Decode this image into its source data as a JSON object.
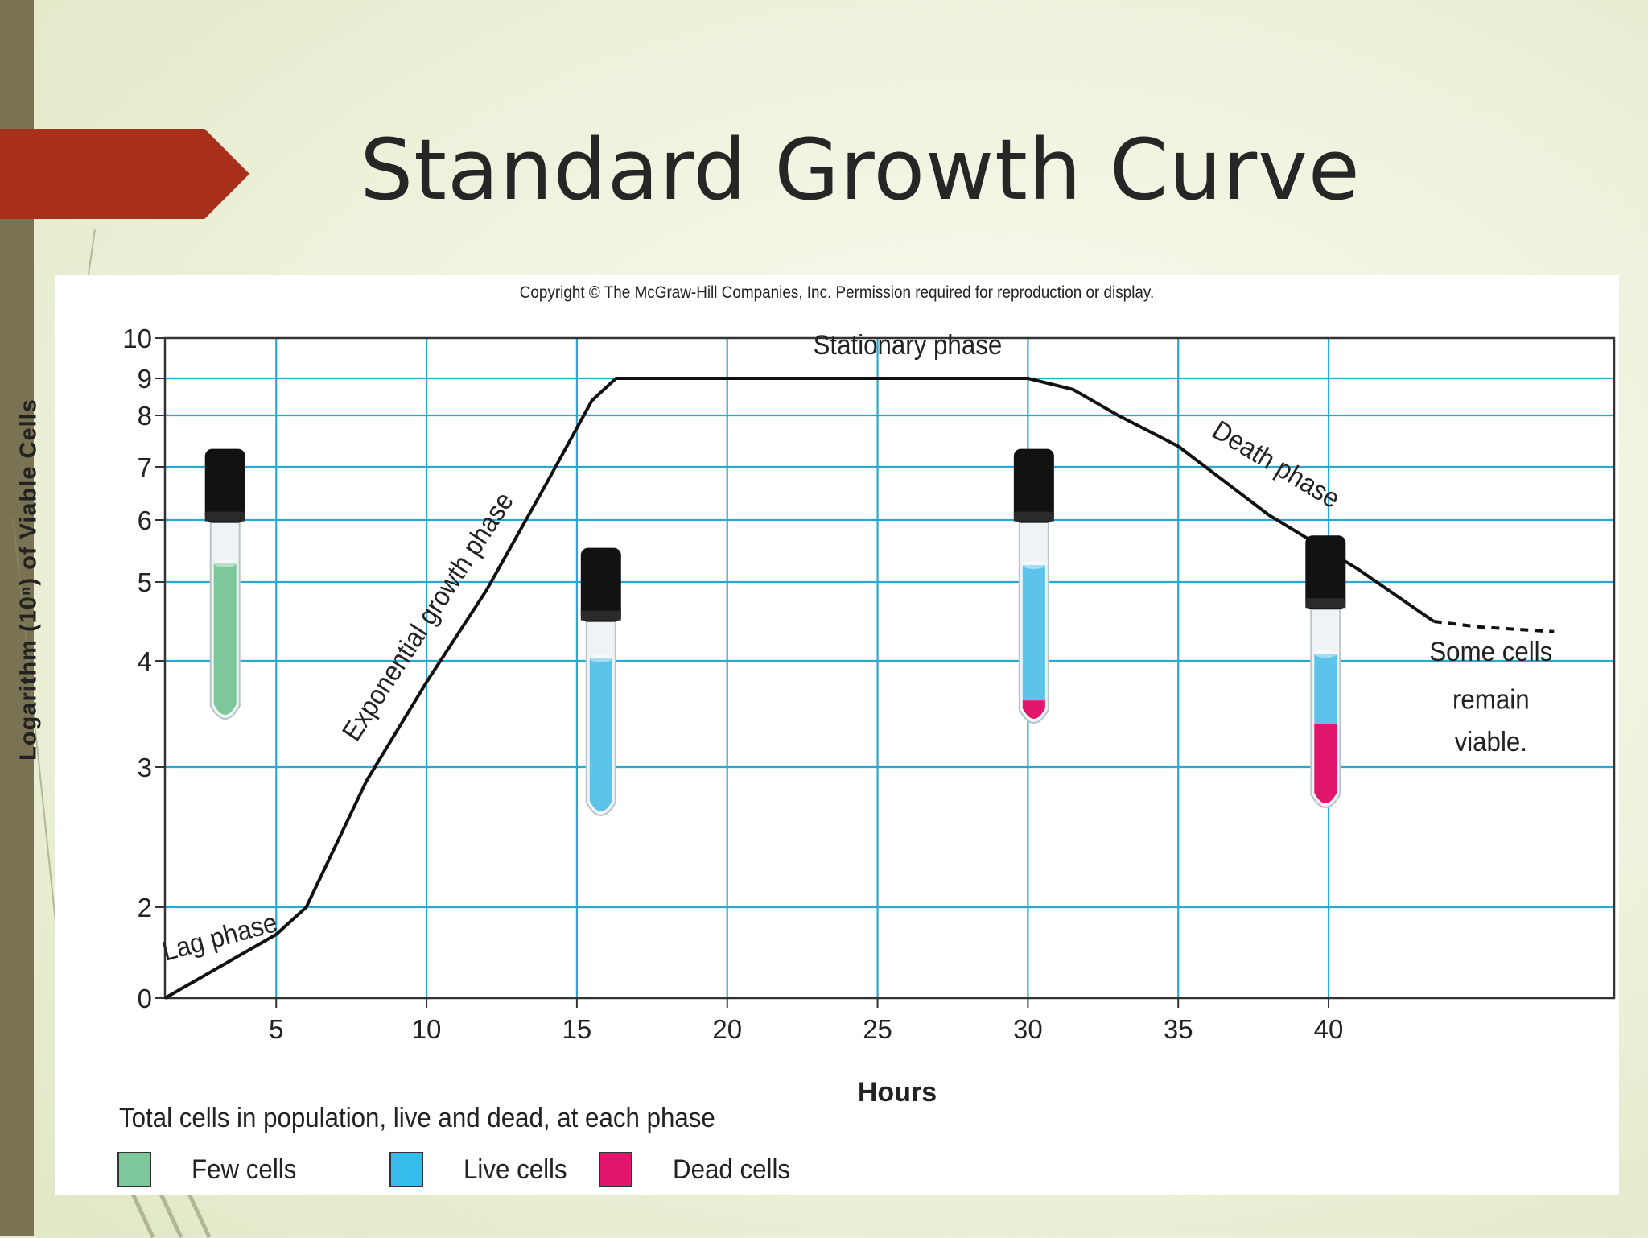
{
  "slide": {
    "title": "Standard Growth Curve"
  },
  "figure": {
    "copyright": "Copyright © The McGraw-Hill Companies, Inc. Permission required for reproduction or display."
  },
  "chart_data": {
    "type": "line",
    "ylabel": "Logarithm (10ⁿ) of Viable Cells",
    "xlabel": "Hours",
    "x_ticks": [
      5,
      10,
      15,
      20,
      25,
      30,
      35,
      40
    ],
    "y_ticks": [
      0,
      2,
      3,
      4,
      5,
      6,
      7,
      8,
      9,
      10
    ],
    "xlim": [
      1.3,
      49.5
    ],
    "ylim": [
      0,
      10
    ],
    "grid": true,
    "series": [
      {
        "x": [
          1.3,
          5,
          6,
          8,
          10,
          12,
          14,
          15.5,
          16.3,
          20,
          25,
          30,
          31.5,
          33,
          35,
          38,
          41,
          43.5
        ],
        "y": [
          0,
          1.4,
          2.0,
          2.9,
          3.8,
          4.9,
          6.7,
          8.4,
          9.0,
          9.0,
          9.0,
          9.0,
          8.7,
          8.0,
          7.4,
          6.1,
          5.2,
          4.5
        ],
        "style": "solid"
      },
      {
        "x": [
          43.5,
          45,
          47.5
        ],
        "y": [
          4.5,
          4.43,
          4.37
        ],
        "style": "dashed"
      }
    ],
    "annotations": [
      {
        "text": "Lag phase",
        "x": 3.2,
        "y": 1.15,
        "rotate": -15
      },
      {
        "text": "Exponential growth phase",
        "x": 10.3,
        "y": 4.5,
        "rotate": -57
      },
      {
        "text": "Stationary phase",
        "x": 26,
        "y": 9.6,
        "rotate": 0
      },
      {
        "text": "Death phase",
        "x": 38.1,
        "y": 6.9,
        "rotate": 31
      },
      {
        "text": "Some cells",
        "x": 45.4,
        "y": 4.0,
        "rotate": 0
      },
      {
        "text": "remain",
        "x": 45.4,
        "y": 3.55,
        "rotate": 0
      },
      {
        "text": "viable.",
        "x": 45.4,
        "y": 3.15,
        "rotate": 0
      }
    ],
    "tubes": [
      {
        "x": 3.3,
        "y_top": 7.35,
        "fill_top": 4.8,
        "green": 1.0,
        "live": 0,
        "dead": 0
      },
      {
        "x": 15.8,
        "y_top": 5.55,
        "fill_top": 4.0,
        "green": 0,
        "live": 1.0,
        "dead": 0
      },
      {
        "x": 30.2,
        "y_top": 7.35,
        "fill_top": 4.8,
        "green": 0,
        "live": 0.85,
        "dead": 0.15
      },
      {
        "x": 39.9,
        "y_top": 5.75,
        "fill_top": 4.0,
        "green": 0,
        "live": 0.45,
        "dead": 0.55
      }
    ],
    "colors": {
      "grid": "#2aa8d4",
      "curve": "#111111",
      "few": "#7dc79a",
      "live": "#5cc3ea",
      "dead": "#e0156b",
      "cap": "#121212"
    }
  },
  "legend": {
    "title": "Total cells in population, live and dead, at each phase",
    "items": [
      {
        "label": "Few cells",
        "color": "#7dc79a"
      },
      {
        "label": "Live cells",
        "color": "#36bdec"
      },
      {
        "label": "Dead cells",
        "color": "#e0156b"
      }
    ]
  }
}
